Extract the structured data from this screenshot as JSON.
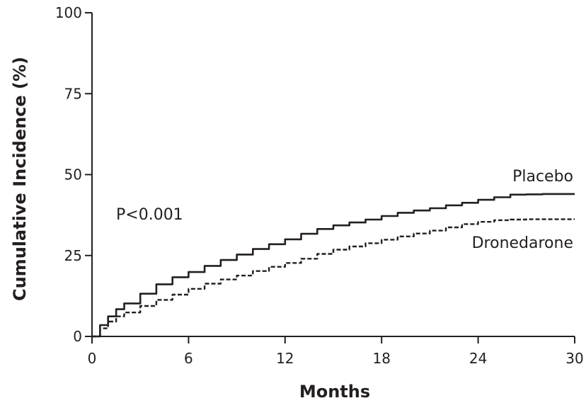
{
  "chart_data": {
    "type": "line",
    "title": "",
    "xlabel": "Months",
    "ylabel": "Cumulative Incidence (%)",
    "xlim": [
      0,
      30
    ],
    "ylim": [
      0,
      100
    ],
    "xticks": [
      0,
      6,
      12,
      18,
      24,
      30
    ],
    "yticks": [
      0,
      25,
      50,
      75,
      100
    ],
    "xtick_labels": [
      "0",
      "6",
      "12",
      "18",
      "24",
      "30"
    ],
    "ytick_labels": [
      "0",
      "25",
      "50",
      "75",
      "100"
    ],
    "grid": false,
    "legend": "none",
    "annotations": [
      {
        "text": "P<0.001"
      }
    ],
    "series": [
      {
        "name": "Placebo",
        "style": "solid",
        "color": "#231f20",
        "x": [
          0,
          0.5,
          1,
          1.5,
          2,
          3,
          4,
          5,
          6,
          7,
          8,
          9,
          10,
          11,
          12,
          13,
          14,
          15,
          16,
          17,
          18,
          19,
          20,
          21,
          22,
          23,
          24,
          25,
          26,
          27,
          28,
          29,
          30
        ],
        "y": [
          0,
          3.5,
          6.2,
          8.4,
          10.2,
          13.2,
          16.1,
          18.3,
          19.9,
          21.8,
          23.6,
          25.3,
          27,
          28.5,
          30,
          31.7,
          33.2,
          34.3,
          35.2,
          36.1,
          37.2,
          38.2,
          38.9,
          39.6,
          40.5,
          41.3,
          42.2,
          43,
          43.8,
          43.9,
          44,
          44,
          44
        ]
      },
      {
        "name": "Dronedarone",
        "style": "dashed",
        "color": "#231f20",
        "x": [
          0,
          0.5,
          1,
          1.5,
          2,
          3,
          4,
          5,
          6,
          7,
          8,
          9,
          10,
          11,
          12,
          13,
          14,
          15,
          16,
          17,
          18,
          19,
          20,
          21,
          22,
          23,
          24,
          25,
          26,
          27,
          28,
          29,
          30
        ],
        "y": [
          0,
          2.5,
          4.6,
          6.2,
          7.4,
          9.4,
          11.3,
          12.9,
          14.7,
          16.3,
          17.6,
          18.8,
          20.2,
          21.5,
          22.7,
          24,
          25.5,
          26.8,
          27.8,
          28.8,
          29.9,
          30.9,
          31.8,
          32.7,
          33.7,
          34.7,
          35.4,
          35.9,
          36.1,
          36.2,
          36.2,
          36.2,
          36.2
        ]
      }
    ]
  }
}
